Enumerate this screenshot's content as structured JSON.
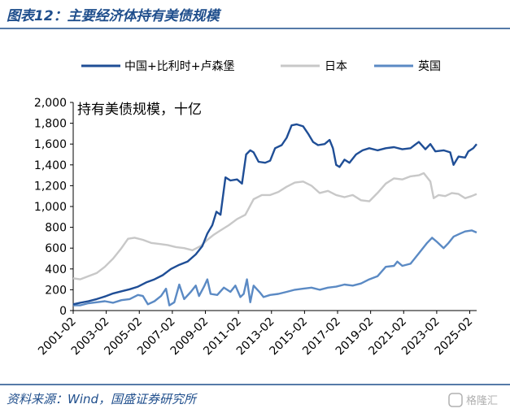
{
  "figure": {
    "title": "图表12：主要经济体持有美债规模",
    "source": "资料来源：Wind，国盛证券研究所",
    "watermark": "格隆汇"
  },
  "chart_data": {
    "type": "line",
    "unit_label": "持有美债规模，十亿",
    "x_range": [
      "2001-02",
      "2025-06"
    ],
    "ylim": [
      0,
      2000
    ],
    "y_ticks": [
      "0",
      "200",
      "400",
      "600",
      "800",
      "1,000",
      "1,200",
      "1,400",
      "1,600",
      "1,800",
      "2,000"
    ],
    "y_tick_values": [
      0,
      200,
      400,
      600,
      800,
      1000,
      1200,
      1400,
      1600,
      1800,
      2000
    ],
    "x_tick_labels": [
      "2001-02",
      "2003-02",
      "2005-02",
      "2007-02",
      "2009-02",
      "2011-02",
      "2013-02",
      "2015-02",
      "2017-02",
      "2019-02",
      "2021-02",
      "2023-02",
      "2025-02"
    ],
    "x_tick_values": [
      2001.083,
      2003.083,
      2005.083,
      2007.083,
      2009.083,
      2011.083,
      2013.083,
      2015.083,
      2017.083,
      2019.083,
      2021.083,
      2023.083,
      2025.083
    ],
    "legend_position": "top",
    "grid": false,
    "series": [
      {
        "name": "中国+比利时+卢森堡",
        "color": "#1f4e96",
        "points": [
          [
            2001.08,
            60
          ],
          [
            2001.5,
            75
          ],
          [
            2002.0,
            90
          ],
          [
            2002.5,
            110
          ],
          [
            2003.0,
            135
          ],
          [
            2003.5,
            165
          ],
          [
            2004.0,
            185
          ],
          [
            2004.5,
            205
          ],
          [
            2005.0,
            230
          ],
          [
            2005.5,
            270
          ],
          [
            2006.0,
            300
          ],
          [
            2006.5,
            340
          ],
          [
            2007.0,
            400
          ],
          [
            2007.5,
            440
          ],
          [
            2008.0,
            470
          ],
          [
            2008.5,
            540
          ],
          [
            2008.9,
            620
          ],
          [
            2009.2,
            740
          ],
          [
            2009.5,
            820
          ],
          [
            2009.75,
            950
          ],
          [
            2010.0,
            920
          ],
          [
            2010.3,
            1280
          ],
          [
            2010.6,
            1250
          ],
          [
            2011.0,
            1260
          ],
          [
            2011.3,
            1220
          ],
          [
            2011.55,
            1500
          ],
          [
            2011.8,
            1540
          ],
          [
            2012.0,
            1520
          ],
          [
            2012.3,
            1430
          ],
          [
            2012.7,
            1420
          ],
          [
            2013.0,
            1440
          ],
          [
            2013.3,
            1560
          ],
          [
            2013.7,
            1590
          ],
          [
            2014.0,
            1660
          ],
          [
            2014.3,
            1780
          ],
          [
            2014.6,
            1790
          ],
          [
            2015.0,
            1770
          ],
          [
            2015.3,
            1700
          ],
          [
            2015.6,
            1620
          ],
          [
            2015.9,
            1590
          ],
          [
            2016.3,
            1600
          ],
          [
            2016.6,
            1640
          ],
          [
            2016.8,
            1560
          ],
          [
            2017.0,
            1400
          ],
          [
            2017.2,
            1380
          ],
          [
            2017.5,
            1450
          ],
          [
            2017.8,
            1420
          ],
          [
            2018.2,
            1500
          ],
          [
            2018.6,
            1540
          ],
          [
            2019.0,
            1560
          ],
          [
            2019.5,
            1540
          ],
          [
            2020.0,
            1560
          ],
          [
            2020.5,
            1570
          ],
          [
            2021.0,
            1550
          ],
          [
            2021.5,
            1560
          ],
          [
            2022.0,
            1620
          ],
          [
            2022.4,
            1550
          ],
          [
            2022.7,
            1600
          ],
          [
            2023.0,
            1530
          ],
          [
            2023.5,
            1540
          ],
          [
            2023.9,
            1520
          ],
          [
            2024.1,
            1400
          ],
          [
            2024.4,
            1480
          ],
          [
            2024.8,
            1470
          ],
          [
            2025.0,
            1530
          ],
          [
            2025.3,
            1560
          ],
          [
            2025.5,
            1600
          ]
        ]
      },
      {
        "name": "日本",
        "color": "#c8c8c8",
        "points": [
          [
            2001.08,
            310
          ],
          [
            2001.5,
            300
          ],
          [
            2002.0,
            330
          ],
          [
            2002.5,
            360
          ],
          [
            2003.0,
            420
          ],
          [
            2003.5,
            500
          ],
          [
            2004.0,
            600
          ],
          [
            2004.4,
            690
          ],
          [
            2004.8,
            700
          ],
          [
            2005.3,
            680
          ],
          [
            2005.8,
            650
          ],
          [
            2006.3,
            640
          ],
          [
            2006.8,
            630
          ],
          [
            2007.3,
            610
          ],
          [
            2007.8,
            600
          ],
          [
            2008.3,
            580
          ],
          [
            2008.8,
            620
          ],
          [
            2009.2,
            680
          ],
          [
            2009.6,
            730
          ],
          [
            2010.0,
            770
          ],
          [
            2010.5,
            820
          ],
          [
            2011.0,
            880
          ],
          [
            2011.5,
            920
          ],
          [
            2012.0,
            1070
          ],
          [
            2012.5,
            1110
          ],
          [
            2013.0,
            1110
          ],
          [
            2013.5,
            1140
          ],
          [
            2014.0,
            1190
          ],
          [
            2014.5,
            1230
          ],
          [
            2015.0,
            1240
          ],
          [
            2015.5,
            1200
          ],
          [
            2016.0,
            1130
          ],
          [
            2016.5,
            1150
          ],
          [
            2017.0,
            1110
          ],
          [
            2017.5,
            1090
          ],
          [
            2018.0,
            1110
          ],
          [
            2018.5,
            1060
          ],
          [
            2019.0,
            1050
          ],
          [
            2019.5,
            1130
          ],
          [
            2020.0,
            1220
          ],
          [
            2020.5,
            1270
          ],
          [
            2021.0,
            1260
          ],
          [
            2021.5,
            1290
          ],
          [
            2022.0,
            1300
          ],
          [
            2022.3,
            1320
          ],
          [
            2022.7,
            1240
          ],
          [
            2022.9,
            1080
          ],
          [
            2023.2,
            1110
          ],
          [
            2023.6,
            1100
          ],
          [
            2024.0,
            1130
          ],
          [
            2024.4,
            1120
          ],
          [
            2024.8,
            1080
          ],
          [
            2025.2,
            1100
          ],
          [
            2025.5,
            1120
          ]
        ]
      },
      {
        "name": "英国",
        "color": "#5b8ac4",
        "points": [
          [
            2001.08,
            50
          ],
          [
            2001.5,
            50
          ],
          [
            2002.0,
            70
          ],
          [
            2002.5,
            80
          ],
          [
            2003.0,
            90
          ],
          [
            2003.5,
            75
          ],
          [
            2004.0,
            100
          ],
          [
            2004.5,
            110
          ],
          [
            2005.0,
            150
          ],
          [
            2005.3,
            140
          ],
          [
            2005.6,
            60
          ],
          [
            2006.0,
            90
          ],
          [
            2006.4,
            140
          ],
          [
            2006.7,
            210
          ],
          [
            2006.9,
            50
          ],
          [
            2007.2,
            80
          ],
          [
            2007.5,
            250
          ],
          [
            2007.8,
            110
          ],
          [
            2008.2,
            180
          ],
          [
            2008.5,
            240
          ],
          [
            2008.7,
            140
          ],
          [
            2009.0,
            230
          ],
          [
            2009.2,
            300
          ],
          [
            2009.4,
            160
          ],
          [
            2009.8,
            150
          ],
          [
            2010.2,
            220
          ],
          [
            2010.6,
            180
          ],
          [
            2010.9,
            240
          ],
          [
            2011.2,
            130
          ],
          [
            2011.4,
            160
          ],
          [
            2011.6,
            300
          ],
          [
            2011.8,
            80
          ],
          [
            2012.0,
            240
          ],
          [
            2012.4,
            170
          ],
          [
            2012.6,
            130
          ],
          [
            2013.0,
            150
          ],
          [
            2013.5,
            160
          ],
          [
            2014.0,
            180
          ],
          [
            2014.5,
            200
          ],
          [
            2015.0,
            210
          ],
          [
            2015.5,
            220
          ],
          [
            2016.0,
            200
          ],
          [
            2016.5,
            220
          ],
          [
            2017.0,
            230
          ],
          [
            2017.5,
            250
          ],
          [
            2018.0,
            240
          ],
          [
            2018.5,
            260
          ],
          [
            2019.0,
            300
          ],
          [
            2019.5,
            330
          ],
          [
            2020.0,
            420
          ],
          [
            2020.5,
            430
          ],
          [
            2020.7,
            470
          ],
          [
            2021.0,
            430
          ],
          [
            2021.5,
            450
          ],
          [
            2022.0,
            550
          ],
          [
            2022.5,
            650
          ],
          [
            2022.8,
            700
          ],
          [
            2023.1,
            660
          ],
          [
            2023.5,
            600
          ],
          [
            2023.8,
            650
          ],
          [
            2024.1,
            710
          ],
          [
            2024.5,
            740
          ],
          [
            2024.8,
            760
          ],
          [
            2025.2,
            770
          ],
          [
            2025.5,
            750
          ]
        ]
      }
    ]
  }
}
